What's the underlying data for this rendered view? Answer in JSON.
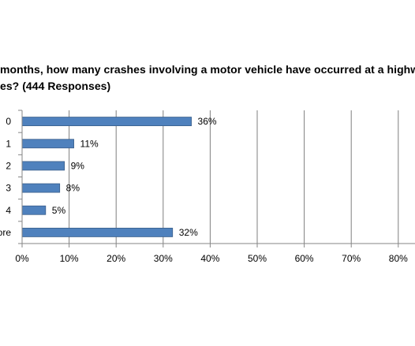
{
  "chart_data": {
    "type": "bar",
    "orientation": "horizontal",
    "title_lines": [
      "months, how many crashes involving a motor vehicle have occurred at a highway w",
      "es? (444 Responses)"
    ],
    "categories": [
      "0",
      "1",
      "2",
      "3",
      "4",
      "ore"
    ],
    "values": [
      36,
      11,
      9,
      8,
      5,
      32
    ],
    "data_labels": [
      "36%",
      "11%",
      "9%",
      "8%",
      "5%",
      "32%"
    ],
    "x_ticks": [
      0,
      10,
      20,
      30,
      40,
      50,
      60,
      70,
      80
    ],
    "x_tick_labels": [
      "0%",
      "10%",
      "20%",
      "30%",
      "40%",
      "50%",
      "60%",
      "70%",
      "80%"
    ],
    "xlim": [
      0,
      83
    ],
    "grid": true,
    "bar_color": "#4F81BD",
    "bar_edge_color": "#385D8A",
    "gridline_color": "#7F7F7F"
  }
}
